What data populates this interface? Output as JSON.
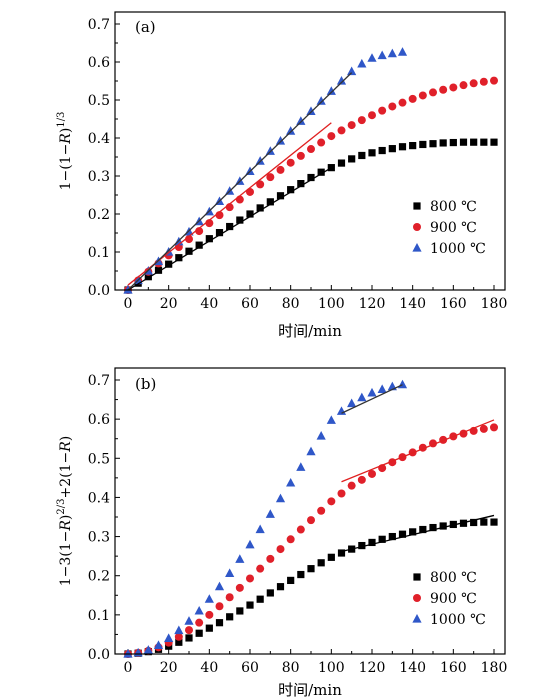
{
  "chart_data": [
    {
      "type": "scatter",
      "panel_label": "(a)",
      "ylabel_parts": {
        "pre": "1−(1−",
        "r": "R",
        "post": ")",
        "sup": "1/3"
      },
      "xlabel": "时间/min",
      "xlim": [
        0,
        180
      ],
      "ylim": [
        0,
        0.7
      ],
      "xticks": [
        0,
        20,
        40,
        60,
        80,
        100,
        120,
        140,
        160,
        180
      ],
      "yticks": [
        0.0,
        0.1,
        0.2,
        0.3,
        0.4,
        0.5,
        0.6,
        0.7
      ],
      "legend_position": "bottom-right",
      "series": [
        {
          "name": "800 ℃",
          "marker": "square",
          "color": "#000000",
          "x": [
            0,
            5,
            10,
            15,
            20,
            25,
            30,
            35,
            40,
            45,
            50,
            55,
            60,
            65,
            70,
            75,
            80,
            85,
            90,
            95,
            100,
            105,
            110,
            115,
            120,
            125,
            130,
            135,
            140,
            145,
            150,
            155,
            160,
            165,
            170,
            175,
            180
          ],
          "y": [
            0,
            0.018,
            0.035,
            0.052,
            0.068,
            0.085,
            0.102,
            0.118,
            0.135,
            0.151,
            0.167,
            0.184,
            0.2,
            0.216,
            0.232,
            0.248,
            0.264,
            0.28,
            0.296,
            0.31,
            0.322,
            0.334,
            0.345,
            0.354,
            0.361,
            0.367,
            0.372,
            0.377,
            0.38,
            0.383,
            0.385,
            0.387,
            0.388,
            0.389,
            0.389,
            0.389,
            0.389
          ],
          "fit": {
            "color": "#000000",
            "x": [
              0,
              100
            ],
            "y": [
              0.0,
              0.322
            ]
          }
        },
        {
          "name": "900 ℃",
          "marker": "circle",
          "color": "#e0202a",
          "x": [
            0,
            5,
            10,
            15,
            20,
            25,
            30,
            35,
            40,
            45,
            50,
            55,
            60,
            65,
            70,
            75,
            80,
            85,
            90,
            95,
            100,
            105,
            110,
            115,
            120,
            125,
            130,
            135,
            140,
            145,
            150,
            155,
            160,
            165,
            170,
            175,
            180
          ],
          "y": [
            0,
            0.025,
            0.048,
            0.07,
            0.091,
            0.113,
            0.134,
            0.155,
            0.176,
            0.197,
            0.218,
            0.238,
            0.258,
            0.278,
            0.297,
            0.316,
            0.335,
            0.353,
            0.371,
            0.388,
            0.405,
            0.42,
            0.434,
            0.447,
            0.46,
            0.472,
            0.483,
            0.493,
            0.503,
            0.512,
            0.52,
            0.527,
            0.533,
            0.539,
            0.544,
            0.548,
            0.551
          ],
          "fit": {
            "color": "#e02020",
            "x": [
              0,
              100
            ],
            "y": [
              0.013,
              0.44
            ]
          }
        },
        {
          "name": "1000 ℃",
          "marker": "triangle",
          "color": "#2f57c8",
          "x": [
            0,
            5,
            10,
            15,
            20,
            25,
            30,
            35,
            40,
            45,
            50,
            55,
            60,
            65,
            70,
            75,
            80,
            85,
            90,
            95,
            100,
            105,
            110,
            115,
            120,
            125,
            130,
            135
          ],
          "y": [
            0,
            0.025,
            0.05,
            0.075,
            0.1,
            0.127,
            0.153,
            0.18,
            0.206,
            0.233,
            0.26,
            0.286,
            0.312,
            0.339,
            0.365,
            0.392,
            0.418,
            0.444,
            0.47,
            0.497,
            0.523,
            0.55,
            0.575,
            0.595,
            0.61,
            0.617,
            0.622,
            0.626
          ],
          "fit": {
            "color": "#333333",
            "x": [
              0,
              110
            ],
            "y": [
              0.0,
              0.572
            ]
          }
        }
      ]
    },
    {
      "type": "scatter",
      "panel_label": "(b)",
      "ylabel_parts": {
        "a": "1−3(1−",
        "r1": "R",
        "b": ")",
        "sup": "2/3",
        "c": "+2(1−",
        "r2": "R",
        "d": ")"
      },
      "xlabel": "时间/min",
      "xlim": [
        0,
        180
      ],
      "ylim": [
        0,
        0.7
      ],
      "xticks": [
        0,
        20,
        40,
        60,
        80,
        100,
        120,
        140,
        160,
        180
      ],
      "yticks": [
        0.0,
        0.1,
        0.2,
        0.3,
        0.4,
        0.5,
        0.6,
        0.7
      ],
      "legend_position": "bottom-right",
      "series": [
        {
          "name": "800 ℃",
          "marker": "square",
          "color": "#000000",
          "x": [
            0,
            5,
            10,
            15,
            20,
            25,
            30,
            35,
            40,
            45,
            50,
            55,
            60,
            65,
            70,
            75,
            80,
            85,
            90,
            95,
            100,
            105,
            110,
            115,
            120,
            125,
            130,
            135,
            140,
            145,
            150,
            155,
            160,
            165,
            170,
            175,
            180
          ],
          "y": [
            0,
            0.002,
            0.006,
            0.012,
            0.02,
            0.03,
            0.041,
            0.053,
            0.066,
            0.08,
            0.095,
            0.11,
            0.125,
            0.14,
            0.156,
            0.172,
            0.188,
            0.203,
            0.218,
            0.233,
            0.247,
            0.258,
            0.268,
            0.277,
            0.285,
            0.293,
            0.3,
            0.306,
            0.312,
            0.318,
            0.323,
            0.327,
            0.331,
            0.334,
            0.336,
            0.337,
            0.337
          ],
          "fit": {
            "color": "#000000",
            "x": [
              105,
              180
            ],
            "y": [
              0.262,
              0.354
            ]
          }
        },
        {
          "name": "900 ℃",
          "marker": "circle",
          "color": "#e0202a",
          "x": [
            0,
            5,
            10,
            15,
            20,
            25,
            30,
            35,
            40,
            45,
            50,
            55,
            60,
            65,
            70,
            75,
            80,
            85,
            90,
            95,
            100,
            105,
            110,
            115,
            120,
            125,
            130,
            135,
            140,
            145,
            150,
            155,
            160,
            165,
            170,
            175,
            180
          ],
          "y": [
            0,
            0.003,
            0.008,
            0.017,
            0.029,
            0.044,
            0.061,
            0.08,
            0.1,
            0.122,
            0.145,
            0.169,
            0.193,
            0.218,
            0.243,
            0.268,
            0.293,
            0.318,
            0.342,
            0.366,
            0.39,
            0.41,
            0.43,
            0.445,
            0.46,
            0.475,
            0.49,
            0.503,
            0.515,
            0.527,
            0.538,
            0.547,
            0.556,
            0.563,
            0.57,
            0.575,
            0.579
          ],
          "fit": {
            "color": "#e02020",
            "x": [
              105,
              180
            ],
            "y": [
              0.44,
              0.598
            ]
          }
        },
        {
          "name": "1000 ℃",
          "marker": "triangle",
          "color": "#2f57c8",
          "x": [
            0,
            5,
            10,
            15,
            20,
            25,
            30,
            35,
            40,
            45,
            50,
            55,
            60,
            65,
            70,
            75,
            80,
            85,
            90,
            95,
            100,
            105,
            110,
            115,
            120,
            125,
            130,
            135
          ],
          "y": [
            0,
            0.003,
            0.01,
            0.022,
            0.04,
            0.06,
            0.084,
            0.11,
            0.14,
            0.172,
            0.206,
            0.242,
            0.279,
            0.318,
            0.357,
            0.397,
            0.437,
            0.477,
            0.517,
            0.557,
            0.597,
            0.62,
            0.64,
            0.655,
            0.667,
            0.676,
            0.683,
            0.688
          ],
          "fit": {
            "color": "#333333",
            "x": [
              105,
              135
            ],
            "y": [
              0.615,
              0.688
            ]
          }
        }
      ]
    }
  ]
}
